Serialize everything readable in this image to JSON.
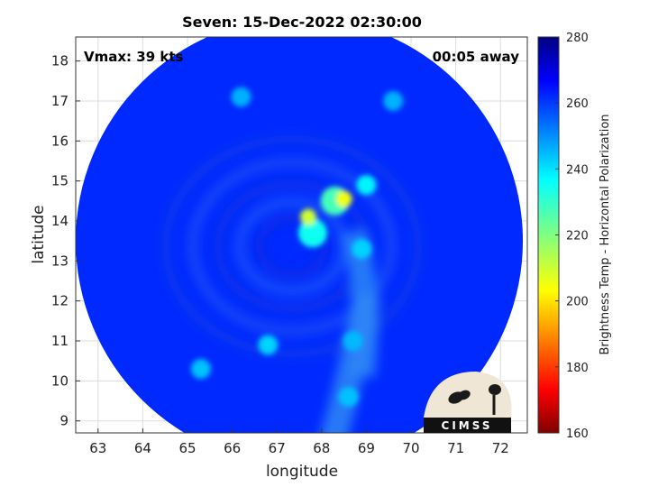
{
  "chart_data": {
    "type": "heatmap",
    "title": "Seven: 15-Dec-2022 02:30:00",
    "xlabel": "longitude",
    "ylabel": "latitude",
    "xlim": [
      62.5,
      72.6
    ],
    "ylim": [
      8.7,
      18.6
    ],
    "x_ticks": [
      63,
      64,
      65,
      66,
      67,
      68,
      69,
      70,
      71,
      72
    ],
    "y_ticks": [
      9,
      10,
      11,
      12,
      13,
      14,
      15,
      16,
      17,
      18
    ],
    "grid": true,
    "annotations": {
      "vmax": "Vmax: 39 kts",
      "away": "00:05 away"
    },
    "swath": {
      "center": [
        67.5,
        13.5
      ],
      "radius_deg": 5.0,
      "background_value": 262
    },
    "features": [
      {
        "lon": 68.5,
        "lat": 14.55,
        "value": 205
      },
      {
        "lon": 67.7,
        "lat": 14.1,
        "value": 210
      },
      {
        "lon": 68.3,
        "lat": 14.5,
        "value": 228
      },
      {
        "lon": 67.8,
        "lat": 13.7,
        "value": 235
      },
      {
        "lon": 69.0,
        "lat": 14.9,
        "value": 238
      },
      {
        "lon": 68.9,
        "lat": 13.3,
        "value": 242
      },
      {
        "lon": 68.7,
        "lat": 11.0,
        "value": 245
      },
      {
        "lon": 68.6,
        "lat": 9.6,
        "value": 244
      },
      {
        "lon": 66.8,
        "lat": 10.9,
        "value": 242
      },
      {
        "lon": 65.3,
        "lat": 10.3,
        "value": 244
      },
      {
        "lon": 66.2,
        "lat": 17.1,
        "value": 246
      },
      {
        "lon": 69.6,
        "lat": 17.0,
        "value": 246
      }
    ],
    "colorbar": {
      "label": "Brightness Temp - Horizontal Polarization",
      "min": 160,
      "max": 280,
      "ticks": [
        160,
        180,
        200,
        220,
        240,
        260,
        280
      ]
    }
  },
  "logo": {
    "text": "CIMSS"
  }
}
